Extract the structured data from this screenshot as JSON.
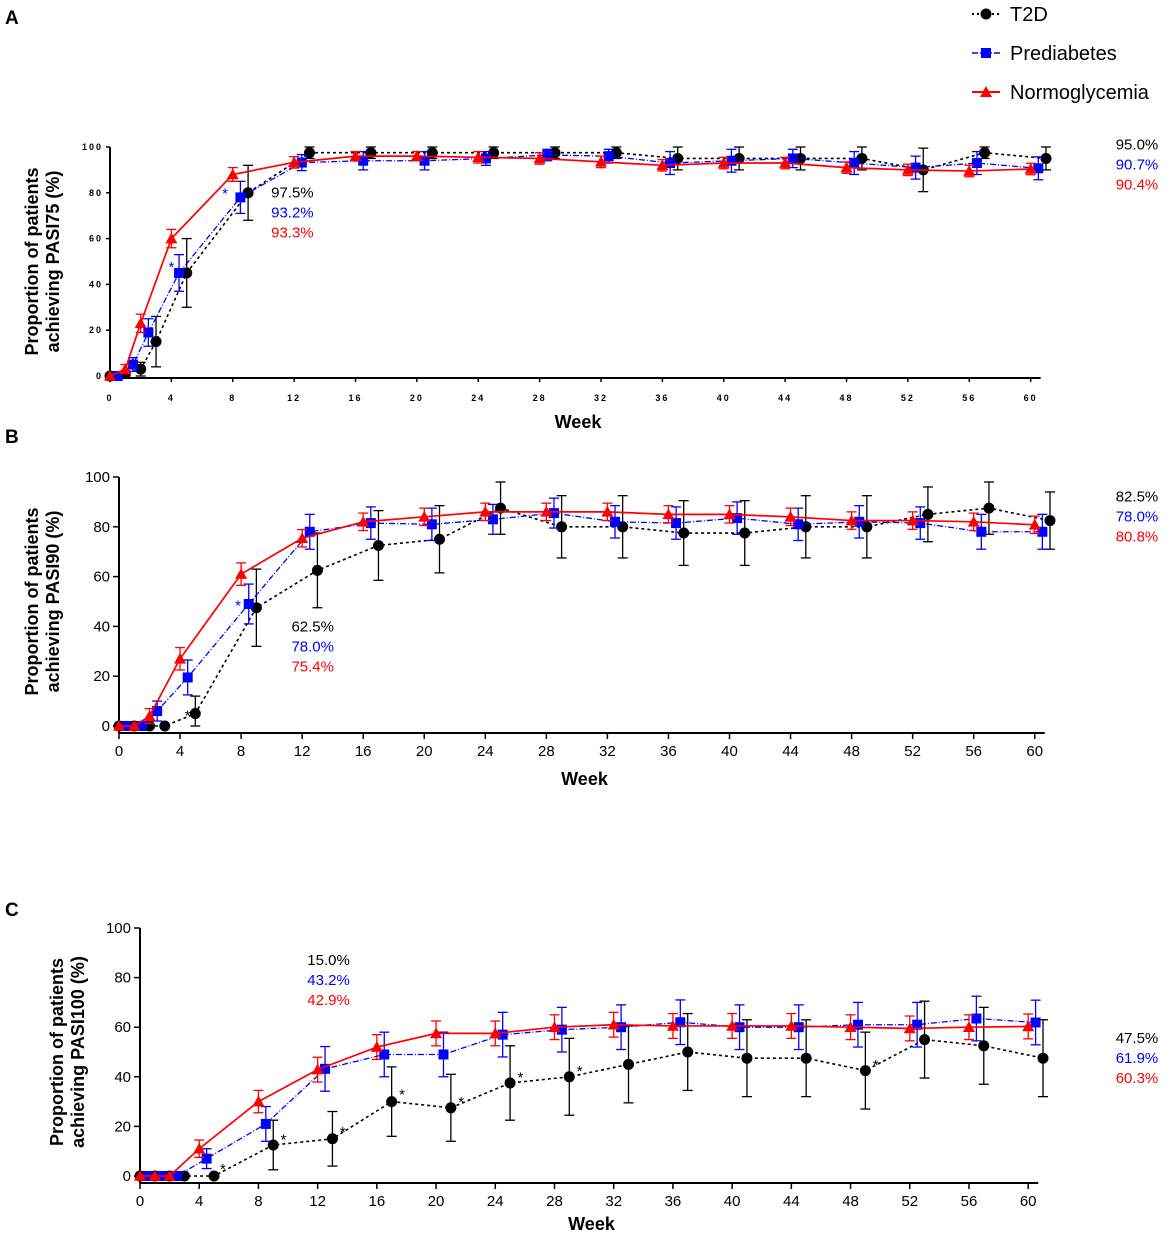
{
  "legend": [
    {
      "name": "T2D",
      "color": "#000000",
      "marker": "circle",
      "dash": "dotted"
    },
    {
      "name": "Prediabetes",
      "color": "#0000ff",
      "marker": "square",
      "dash": "dashdot"
    },
    {
      "name": "Normoglycemia",
      "color": "#ff0000",
      "marker": "triangle",
      "dash": "solid"
    }
  ],
  "chart_data": [
    {
      "panel": "A",
      "type": "line",
      "xlabel": "Week",
      "ylabel": "Proportion of patients achieving PASI75 (%)",
      "ylabel_lines": [
        "Proportion of patients",
        "achieving PASI75 (%)"
      ],
      "xlim": [
        0,
        61
      ],
      "ylim": [
        0,
        100
      ],
      "xticks": [
        0,
        4,
        8,
        12,
        16,
        20,
        24,
        28,
        32,
        36,
        40,
        44,
        48,
        52,
        56,
        60
      ],
      "yticks": [
        0,
        20,
        40,
        60,
        80,
        100
      ],
      "series": [
        {
          "name": "T2D",
          "x": [
            0,
            1,
            2,
            3,
            5,
            9,
            13,
            17,
            21,
            25,
            29,
            33,
            37,
            41,
            45,
            49,
            53,
            57,
            61
          ],
          "values": [
            0,
            1,
            3,
            15,
            45,
            80,
            97.5,
            97.5,
            97.5,
            97.5,
            97.5,
            97.5,
            95,
            95,
            95,
            95,
            90,
            97.5,
            95
          ],
          "err": [
            0,
            1,
            3,
            11,
            15,
            12,
            2.5,
            2.5,
            2.5,
            2.5,
            2.5,
            2.5,
            5,
            5,
            5,
            5,
            9.5,
            2.5,
            5
          ]
        },
        {
          "name": "Prediabetes",
          "x": [
            0.5,
            1.5,
            2.5,
            4.5,
            8.5,
            12.5,
            16.5,
            20.5,
            24.5,
            28.5,
            32.5,
            36.5,
            40.5,
            44.5,
            48.5,
            52.5,
            56.5,
            60.5
          ],
          "values": [
            0,
            5,
            19,
            45,
            78,
            93.2,
            94,
            94,
            95,
            96.5,
            96,
            93,
            94,
            95,
            93,
            91,
            93,
            90.7
          ],
          "err": [
            0,
            3,
            6,
            8,
            7,
            3.5,
            4,
            4,
            3,
            2.5,
            3,
            5,
            5,
            4,
            5,
            5,
            5,
            5
          ]
        },
        {
          "name": "Normoglycemia",
          "x": [
            0,
            1,
            2,
            4,
            8,
            12,
            16,
            20,
            24,
            28,
            32,
            36,
            40,
            44,
            48,
            52,
            56,
            60
          ],
          "values": [
            0,
            3,
            23,
            60,
            88,
            93.3,
            96,
            96,
            95.5,
            95,
            93.5,
            92,
            93,
            93,
            91,
            90,
            89.5,
            90.4
          ],
          "err": [
            0,
            2,
            4,
            4,
            3,
            2.5,
            2,
            2,
            2.5,
            2.5,
            2.5,
            2.5,
            2.5,
            2.5,
            2.5,
            2.5,
            2.5,
            2.5
          ]
        }
      ],
      "stars": [
        {
          "x": 4,
          "y": 49,
          "color": "#0000ff"
        },
        {
          "x": 7.5,
          "y": 81,
          "color": "#0000ff"
        }
      ],
      "annotation_mid": {
        "x": 10.5,
        "y": 78,
        "values": [
          "97.5%",
          "93.2%",
          "93.3%"
        ]
      },
      "annotation_end": {
        "values": [
          "95.0%",
          "90.7%",
          "90.4%"
        ]
      }
    },
    {
      "panel": "B",
      "type": "line",
      "xlabel": "Week",
      "ylabel": "Proportion of patients achieving PASI90 (%)",
      "ylabel_lines": [
        "Proportion of patients",
        "achieving PASI90 (%)"
      ],
      "xlim": [
        0,
        61
      ],
      "ylim": [
        0,
        100
      ],
      "xticks": [
        0,
        4,
        8,
        12,
        16,
        20,
        24,
        28,
        32,
        36,
        40,
        44,
        48,
        52,
        56,
        60
      ],
      "yticks": [
        0,
        20,
        40,
        60,
        80,
        100
      ],
      "series": [
        {
          "name": "T2D",
          "x": [
            0,
            1,
            2,
            3,
            5,
            9,
            13,
            17,
            21,
            25,
            29,
            33,
            37,
            41,
            45,
            49,
            53,
            57,
            61
          ],
          "values": [
            0,
            0,
            0,
            0,
            5,
            47.5,
            62.5,
            72.5,
            75,
            87.5,
            80,
            80,
            77.5,
            77.5,
            80,
            80,
            85,
            87.5,
            82.5
          ],
          "err": [
            0,
            0,
            0,
            0,
            7,
            15.5,
            15,
            14,
            13.5,
            10.5,
            12.5,
            12.5,
            13,
            13,
            12.5,
            12.5,
            11,
            10.5,
            11.5
          ]
        },
        {
          "name": "Prediabetes",
          "x": [
            0.5,
            1.5,
            2.5,
            4.5,
            8.5,
            12.5,
            16.5,
            20.5,
            24.5,
            28.5,
            32.5,
            36.5,
            40.5,
            44.5,
            48.5,
            52.5,
            56.5,
            60.5
          ],
          "values": [
            0,
            0,
            6,
            19.5,
            49,
            78,
            81.5,
            81,
            83,
            85.5,
            82,
            81.5,
            83.5,
            81,
            82,
            81.5,
            78,
            78
          ],
          "err": [
            0,
            0,
            4,
            7,
            8,
            7,
            6.5,
            6.5,
            6,
            6,
            6.5,
            6.5,
            6.5,
            6.5,
            6.5,
            6.5,
            7,
            7
          ]
        },
        {
          "name": "Normoglycemia",
          "x": [
            0,
            1,
            2,
            4,
            8,
            12,
            16,
            20,
            24,
            28,
            32,
            36,
            40,
            44,
            48,
            52,
            56,
            60
          ],
          "values": [
            0,
            0,
            4,
            27,
            61,
            75.4,
            82,
            84,
            86,
            86,
            86,
            85,
            85,
            84,
            82.5,
            82.5,
            82,
            80.8
          ],
          "err": [
            0,
            0,
            3,
            4.5,
            4.5,
            3.5,
            3.5,
            3.5,
            3.5,
            3.5,
            3.5,
            3.5,
            3.5,
            3.5,
            3.5,
            3.5,
            3.5,
            3.5
          ]
        }
      ],
      "stars": [
        {
          "x": 4.5,
          "y": 5.5,
          "color": "#000000"
        },
        {
          "x": 7.8,
          "y": 49.5,
          "color": "#0000ff"
        }
      ],
      "annotation_mid": {
        "x": 11.3,
        "y": 38,
        "values": [
          "62.5%",
          "78.0%",
          "75.4%"
        ]
      },
      "annotation_end": {
        "values": [
          "82.5%",
          "78.0%",
          "80.8%"
        ]
      }
    },
    {
      "panel": "C",
      "type": "line",
      "xlabel": "Week",
      "ylabel": "Proportion of patients achieving PASI100 (%)",
      "ylabel_lines": [
        "Proportion of patients",
        "achieving PASI100 (%)"
      ],
      "xlim": [
        0,
        61
      ],
      "ylim": [
        0,
        100
      ],
      "xticks": [
        0,
        4,
        8,
        12,
        16,
        20,
        24,
        28,
        32,
        36,
        40,
        44,
        48,
        52,
        56,
        60
      ],
      "yticks": [
        0,
        20,
        40,
        60,
        80,
        100
      ],
      "series": [
        {
          "name": "T2D",
          "x": [
            0,
            1,
            2,
            3,
            5,
            9,
            13,
            17,
            21,
            25,
            29,
            33,
            37,
            41,
            45,
            49,
            53,
            57,
            61
          ],
          "values": [
            0,
            0,
            0,
            0,
            0,
            12.5,
            15,
            30,
            27.5,
            37.5,
            40,
            45,
            50,
            47.5,
            47.5,
            42.5,
            55,
            52.5,
            47.5
          ],
          "err": [
            0,
            0,
            0,
            0,
            0,
            10,
            11,
            14,
            13.5,
            15,
            15.5,
            15.5,
            15.5,
            15.5,
            15.5,
            15.5,
            15.5,
            15.5,
            15.5
          ]
        },
        {
          "name": "Prediabetes",
          "x": [
            0.5,
            1.5,
            2.5,
            4.5,
            8.5,
            12.5,
            16.5,
            20.5,
            24.5,
            28.5,
            32.5,
            36.5,
            40.5,
            44.5,
            48.5,
            52.5,
            56.5,
            60.5
          ],
          "values": [
            0,
            0,
            0,
            7,
            21,
            43.2,
            49,
            49,
            57,
            59,
            60,
            62,
            60,
            60,
            61,
            61,
            63.5,
            61.9
          ],
          "err": [
            0,
            0,
            0,
            4,
            7,
            9,
            9,
            9,
            9,
            9,
            9,
            9,
            9,
            9,
            9,
            9,
            9,
            9
          ]
        },
        {
          "name": "Normoglycemia",
          "x": [
            0,
            1,
            2,
            4,
            8,
            12,
            16,
            20,
            24,
            28,
            32,
            36,
            40,
            44,
            48,
            52,
            56,
            60
          ],
          "values": [
            0,
            0,
            0,
            11,
            30,
            42.9,
            52,
            57.5,
            57.5,
            60,
            61,
            60.5,
            60.5,
            60.5,
            60,
            59.5,
            60,
            60.3
          ],
          "err": [
            0,
            0,
            0,
            3.5,
            4.5,
            5,
            5,
            5,
            5,
            5,
            5,
            5,
            5,
            5,
            5,
            5,
            5,
            5
          ]
        }
      ],
      "stars": [
        {
          "x": 5.6,
          "y": 4,
          "color": "#000000"
        },
        {
          "x": 9.7,
          "y": 16,
          "color": "#000000"
        },
        {
          "x": 13.7,
          "y": 19,
          "color": "#000000"
        },
        {
          "x": 17.7,
          "y": 34,
          "color": "#000000"
        },
        {
          "x": 21.7,
          "y": 31,
          "color": "#000000"
        },
        {
          "x": 25.7,
          "y": 41,
          "color": "#000000"
        },
        {
          "x": 29.7,
          "y": 43.5,
          "color": "#000000"
        },
        {
          "x": 49.7,
          "y": 46,
          "color": "#000000"
        }
      ],
      "annotation_mid": {
        "x": 11.3,
        "y": 85,
        "values": [
          "15.0%",
          "43.2%",
          "42.9%"
        ]
      },
      "annotation_end": {
        "values": [
          "47.5%",
          "61.9%",
          "60.3%"
        ]
      }
    }
  ]
}
